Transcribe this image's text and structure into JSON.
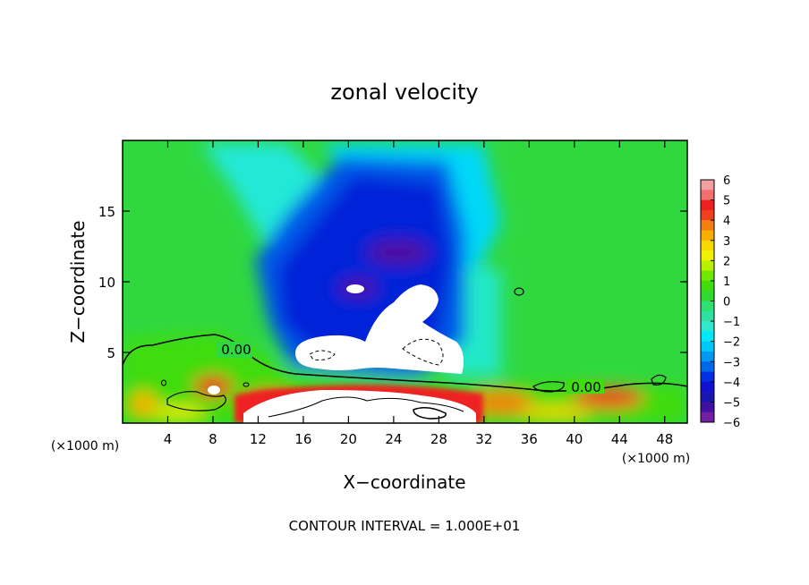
{
  "chart_data": {
    "type": "heatmap",
    "title": "zonal velocity",
    "xlabel": "X−coordinate",
    "ylabel": "Z−coordinate",
    "x_unit_left": "(×1000 m)",
    "x_unit_right": "(×1000 m)",
    "footer": "CONTOUR INTERVAL = 1.000E+01",
    "xlim": [
      0,
      50
    ],
    "ylim": [
      0,
      20
    ],
    "x_ticks": [
      "4",
      "8",
      "12",
      "16",
      "20",
      "24",
      "28",
      "32",
      "36",
      "40",
      "44",
      "48"
    ],
    "x_tick_values": [
      4,
      8,
      12,
      16,
      20,
      24,
      28,
      32,
      36,
      40,
      44,
      48
    ],
    "y_ticks": [
      "5",
      "10",
      "15"
    ],
    "y_tick_values": [
      5,
      10,
      15
    ],
    "contour_labels": [
      "0.00",
      "0.00"
    ],
    "colorbar": {
      "ticks": [
        "6",
        "5",
        "4",
        "3",
        "2",
        "1",
        "0",
        "−1",
        "−2",
        "−3",
        "−4",
        "−5",
        "−6"
      ],
      "levels": [
        {
          "value": 5.5,
          "color": "#f2a0a0"
        },
        {
          "value": 5.0,
          "color": "#f07070"
        },
        {
          "value": 4.5,
          "color": "#ee2020"
        },
        {
          "value": 4.0,
          "color": "#f04020"
        },
        {
          "value": 3.5,
          "color": "#f28010"
        },
        {
          "value": 3.0,
          "color": "#f8b000"
        },
        {
          "value": 2.5,
          "color": "#f8d800"
        },
        {
          "value": 2.0,
          "color": "#f0f000"
        },
        {
          "value": 1.5,
          "color": "#b8f000"
        },
        {
          "value": 1.0,
          "color": "#70e800"
        },
        {
          "value": 0.5,
          "color": "#40dc10"
        },
        {
          "value": 0.0,
          "color": "#30d830"
        },
        {
          "value": -0.5,
          "color": "#30e070"
        },
        {
          "value": -1.0,
          "color": "#30e0a0"
        },
        {
          "value": -1.5,
          "color": "#30e8d0"
        },
        {
          "value": -2.0,
          "color": "#00e8f8"
        },
        {
          "value": -2.5,
          "color": "#00c8f8"
        },
        {
          "value": -3.0,
          "color": "#0098f0"
        },
        {
          "value": -3.5,
          "color": "#0068e8"
        },
        {
          "value": -4.0,
          "color": "#0030e0"
        },
        {
          "value": -4.5,
          "color": "#1010d0"
        },
        {
          "value": -5.0,
          "color": "#1818b0"
        },
        {
          "value": -5.5,
          "color": "#4010a0"
        },
        {
          "value": -6.0,
          "color": "#7020a0"
        }
      ]
    }
  }
}
